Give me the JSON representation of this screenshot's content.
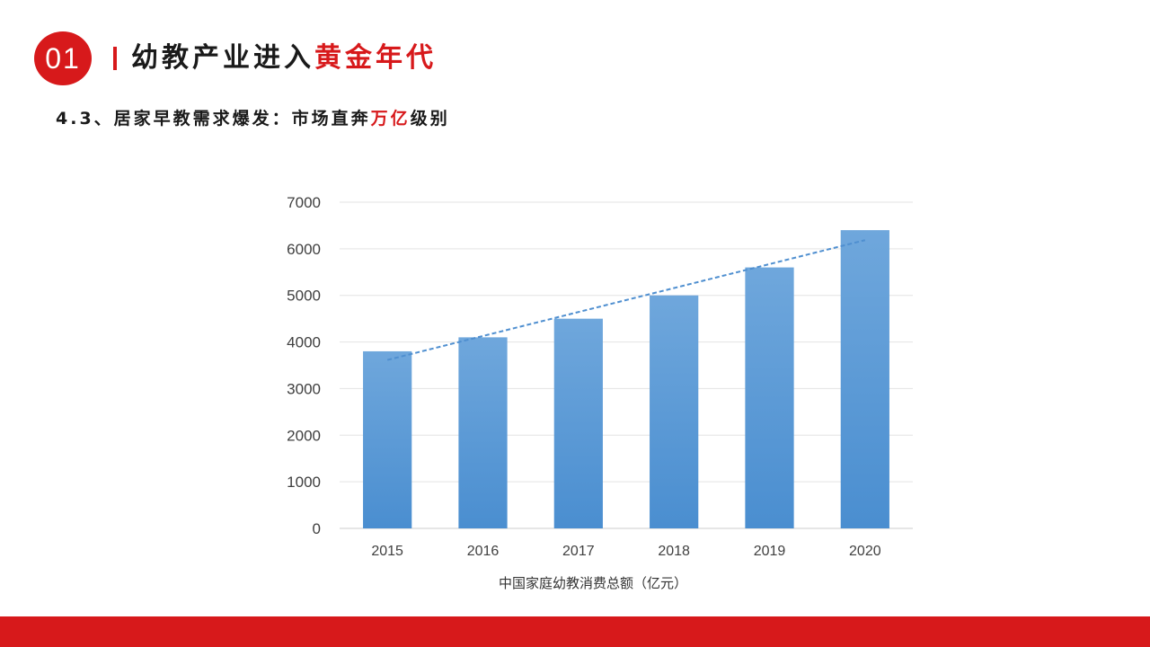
{
  "header": {
    "badge": "01",
    "title_main": "幼教产业进入",
    "title_highlight": "黄金年代"
  },
  "subheader": {
    "prefix": "4.3、居家早教需求爆发：市场直奔",
    "highlight": "万亿",
    "suffix": "级别"
  },
  "colors": {
    "accent": "#d7191b",
    "bar_top": "#6fa7dc",
    "bar_bottom": "#4a8ed0",
    "trendline": "#4f8fd0"
  },
  "chart_data": {
    "type": "bar",
    "categories": [
      "2015",
      "2016",
      "2017",
      "2018",
      "2019",
      "2020"
    ],
    "values": [
      3800,
      4100,
      4500,
      5000,
      5600,
      6400
    ],
    "xlabel": "中国家庭幼教消费总额（亿元）",
    "ylabel": "",
    "ylim": [
      0,
      7000
    ],
    "yticks": [
      0,
      1000,
      2000,
      3000,
      4000,
      5000,
      6000,
      7000
    ],
    "grid": true,
    "trendline": {
      "style": "dashed",
      "type": "linear"
    }
  }
}
